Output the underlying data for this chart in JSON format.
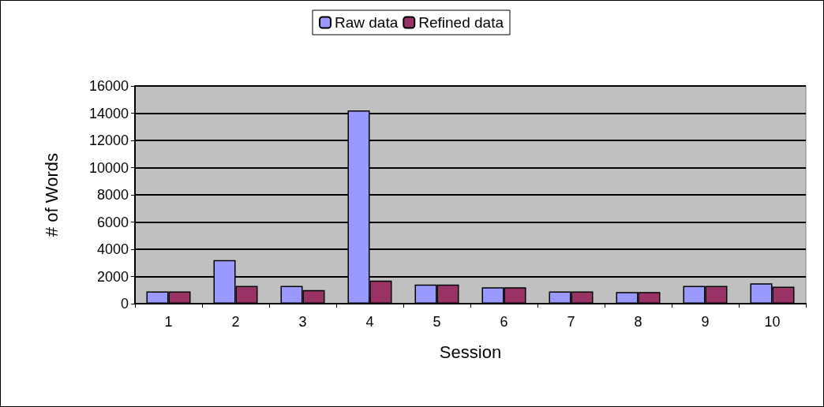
{
  "chart_data": {
    "type": "bar",
    "xlabel": "Session",
    "ylabel": "# of Words",
    "categories": [
      "1",
      "2",
      "3",
      "4",
      "5",
      "6",
      "7",
      "8",
      "9",
      "10"
    ],
    "series": [
      {
        "name": "Raw data",
        "color": "#9999ff",
        "values": [
          900,
          3200,
          1300,
          14200,
          1400,
          1200,
          900,
          850,
          1300,
          1500
        ]
      },
      {
        "name": "Refined data",
        "color": "#993366",
        "values": [
          900,
          1300,
          1000,
          1700,
          1400,
          1200,
          900,
          850,
          1300,
          1250
        ]
      }
    ],
    "ylim": [
      0,
      16000
    ],
    "yticks": [
      0,
      2000,
      4000,
      6000,
      8000,
      10000,
      12000,
      14000,
      16000
    ],
    "grid": "y",
    "legend": "top"
  }
}
